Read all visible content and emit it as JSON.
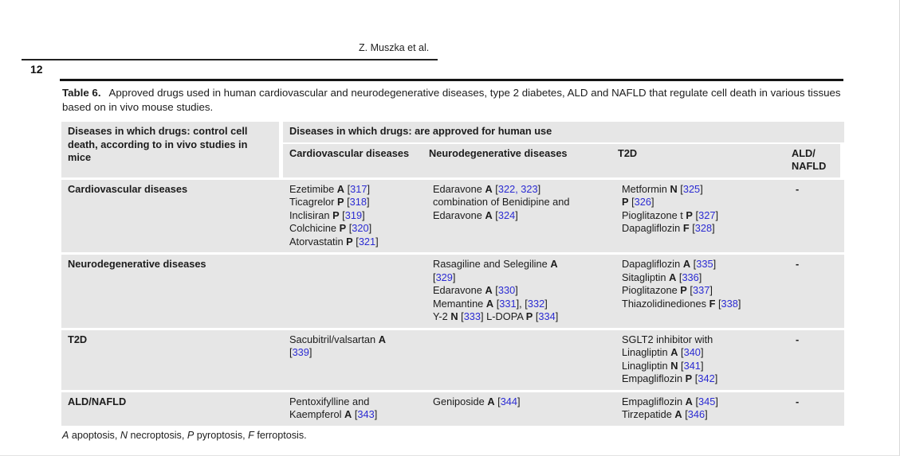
{
  "page": {
    "running_head": "Z. Muszka et al.",
    "page_number": "12",
    "caption_label": "Table 6.",
    "caption_text": "Approved drugs used in human cardiovascular and neurodegenerative diseases, type 2 diabetes, ALD and NAFLD that regulate cell death in various tissues based on in vivo mouse studies.",
    "footnote": "A apoptosis, N necroptosis, P pyroptosis, F ferroptosis."
  },
  "colors": {
    "table_background": "#e6e6e6",
    "reference_blue": "#2b2bd2",
    "text": "#1c1c1c"
  },
  "table": {
    "col1_header": "Diseases in which drugs: control cell death, according to in vivo studies in mice",
    "group_header": "Diseases in which drugs: are approved for human use",
    "sub_headers": [
      "Cardiovascular diseases",
      "Neurodegenerative diseases",
      "T2D",
      "ALD/​NAFLD"
    ],
    "rows": [
      {
        "label": "Cardiovascular diseases",
        "cardiovascular": [
          "Ezetimibe A [317]",
          "Ticagrelor P [318]",
          "Inclisiran P [319]",
          "Colchicine P [320]",
          "Atorvastatin P [321]"
        ],
        "neurodegenerative": [
          "Edaravone A [322, 323]",
          "combination of Benidipine and",
          "Edaravone A [324]"
        ],
        "t2d": [
          "Metformin N [325]",
          "P [326]",
          "Pioglitazone t P [327]",
          "Dapagliflozin F [328]"
        ],
        "ald_nafld": [
          "-"
        ]
      },
      {
        "label": "Neurodegenerative diseases",
        "cardiovascular": [],
        "neurodegenerative": [
          "Rasagiline and Selegiline A",
          "[329]",
          "Edaravone A [330]",
          "Memantine A [331], [332]",
          "Y-2 N [333] L-DOPA P [334]"
        ],
        "t2d": [
          "Dapagliflozin A [335]",
          "Sitagliptin A [336]",
          "Pioglitazone P [337]",
          "Thiazolidinediones F [338]"
        ],
        "ald_nafld": [
          "-"
        ]
      },
      {
        "label": "T2D",
        "cardiovascular": [
          "Sacubitril/valsartan A",
          "[339]"
        ],
        "neurodegenerative": [],
        "t2d": [
          "SGLT2 inhibitor with",
          "Linagliptin A [340]",
          "Linagliptin N [341]",
          "Empagliflozin P [342]"
        ],
        "ald_nafld": [
          "-"
        ]
      },
      {
        "label": "ALD/NAFLD",
        "cardiovascular": [
          "Pentoxifylline and",
          "Kaempferol A [343]"
        ],
        "neurodegenerative": [
          "Geniposide A [344]"
        ],
        "t2d": [
          "Empagliflozin A [345]",
          "Tirzepatide A [346]"
        ],
        "ald_nafld": [
          "-"
        ]
      }
    ]
  }
}
